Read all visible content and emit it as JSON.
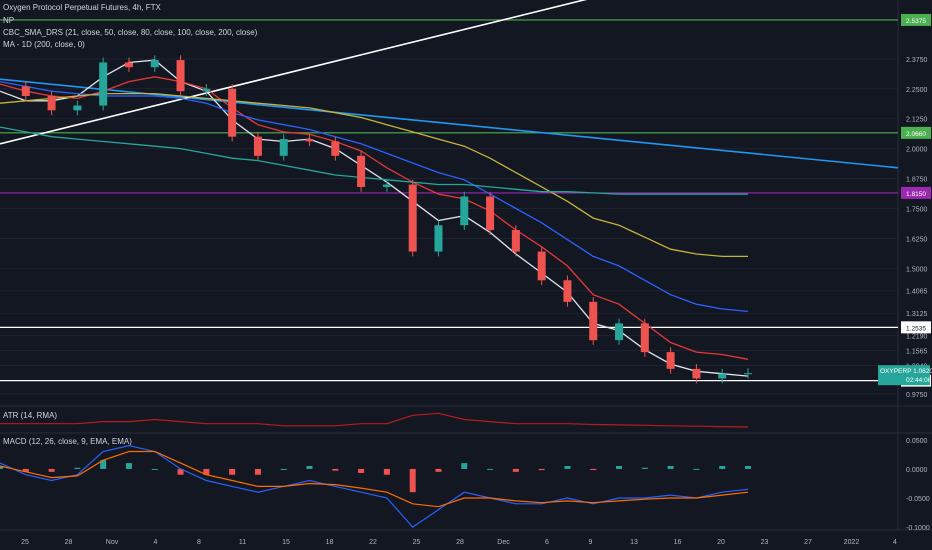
{
  "header": {
    "title": "Oxygen Protocol Perpetual Futures, 4h, FTX",
    "legend_np": "NP",
    "legend_sma": "CBC_SMA_DRS (21, close, 50, close, 80, close, 100, close, 200, close)",
    "legend_ma1d": "MA - 1D (200, close, 0)"
  },
  "atr": {
    "label": "ATR (14, RMA)"
  },
  "macd": {
    "label": "MACD (12, 26, close, 9, EMA, EMA)"
  },
  "chart_data": {
    "type": "line",
    "title": "Oxygen Protocol Perpetual Futures, 4h, FTX",
    "symbol_tag": "OXYPERP",
    "last_price": "1.0620",
    "countdown": "02:44:06",
    "price_axis_ticks": [
      "2.3750",
      "2.2500",
      "2.1250",
      "2.0000",
      "1.8750",
      "1.7500",
      "1.6250",
      "1.5000",
      "1.4065",
      "1.3125",
      "1.2190",
      "1.1565",
      "1.0940",
      "0.9750"
    ],
    "macd_axis_ticks": [
      "0.0500",
      "0.0000",
      "-0.0500",
      "-0.1000"
    ],
    "x_ticks": [
      "25",
      "28",
      "Nov",
      "4",
      "8",
      "11",
      "15",
      "18",
      "22",
      "25",
      "28",
      "Dec",
      "6",
      "9",
      "13",
      "16",
      "20",
      "23",
      "27",
      "2022",
      "4"
    ],
    "horizontal_levels": [
      {
        "label": "2.5375",
        "value": 2.5375,
        "color": "#4caf50"
      },
      {
        "label": "2.0660",
        "value": 2.066,
        "color": "#4caf50"
      },
      {
        "label": "1.8150",
        "value": 1.815,
        "color": "#9c27b0"
      },
      {
        "label": "1.2535",
        "value": 1.2535,
        "color": "#ffffff"
      },
      {
        "label": "1.0310",
        "value": 1.031,
        "color": "#ffffff"
      }
    ],
    "price_series": {
      "name": "OXYPERP",
      "x_dates": [
        "Oct 23",
        "Oct 25",
        "Oct 28",
        "Nov 1",
        "Nov 4",
        "Nov 6",
        "Nov 8",
        "Nov 11",
        "Nov 15",
        "Nov 18",
        "Nov 20",
        "Nov 22",
        "Nov 25",
        "Nov 27",
        "Nov 29",
        "Dec 1",
        "Dec 2",
        "Dec 3",
        "Dec 4",
        "Dec 6",
        "Dec 9",
        "Dec 11",
        "Dec 13",
        "Dec 15",
        "Dec 16",
        "Dec 18",
        "Dec 20",
        "Dec 21",
        "Dec 22",
        "Dec 23"
      ],
      "close": [
        2.26,
        2.22,
        2.16,
        2.18,
        2.36,
        2.34,
        2.37,
        2.24,
        2.25,
        2.05,
        1.97,
        2.04,
        2.03,
        1.97,
        1.84,
        1.85,
        1.57,
        1.68,
        1.8,
        1.66,
        1.57,
        1.45,
        1.36,
        1.2,
        1.27,
        1.15,
        1.08,
        1.04,
        1.06,
        1.062
      ]
    },
    "ma_lines": [
      {
        "name": "SMA 21",
        "color": "#e0e3eb",
        "values": [
          2.24,
          2.2,
          2.2,
          2.22,
          2.3,
          2.36,
          2.37,
          2.28,
          2.24,
          2.12,
          2.04,
          2.03,
          2.04,
          2.0,
          1.93,
          1.86,
          1.78,
          1.7,
          1.72,
          1.65,
          1.56,
          1.48,
          1.4,
          1.27,
          1.24,
          1.16,
          1.1,
          1.07,
          1.06,
          1.05
        ]
      },
      {
        "name": "SMA 50",
        "color": "#e53935",
        "values": [
          2.27,
          2.24,
          2.22,
          2.21,
          2.24,
          2.28,
          2.3,
          2.28,
          2.25,
          2.17,
          2.1,
          2.07,
          2.06,
          2.03,
          1.99,
          1.92,
          1.86,
          1.81,
          1.79,
          1.74,
          1.66,
          1.59,
          1.51,
          1.39,
          1.35,
          1.27,
          1.19,
          1.15,
          1.14,
          1.12
        ]
      },
      {
        "name": "SMA 100",
        "color": "#2962ff",
        "values": [
          2.28,
          2.26,
          2.24,
          2.23,
          2.22,
          2.22,
          2.22,
          2.21,
          2.19,
          2.15,
          2.12,
          2.1,
          2.08,
          2.05,
          2.02,
          1.98,
          1.94,
          1.9,
          1.87,
          1.81,
          1.75,
          1.69,
          1.62,
          1.55,
          1.51,
          1.45,
          1.39,
          1.35,
          1.33,
          1.32
        ]
      },
      {
        "name": "SMA 200",
        "color": "#c5b33a",
        "values": [
          2.19,
          2.2,
          2.21,
          2.22,
          2.23,
          2.23,
          2.23,
          2.22,
          2.21,
          2.2,
          2.19,
          2.18,
          2.17,
          2.15,
          2.13,
          2.1,
          2.07,
          2.04,
          2.01,
          1.96,
          1.9,
          1.84,
          1.78,
          1.71,
          1.68,
          1.63,
          1.58,
          1.56,
          1.55,
          1.55
        ]
      },
      {
        "name": "MA - 1D 200",
        "color": "#26a69a",
        "values": [
          2.09,
          2.07,
          2.05,
          2.04,
          2.03,
          2.02,
          2.01,
          2.0,
          1.98,
          1.96,
          1.95,
          1.93,
          1.91,
          1.89,
          1.88,
          1.87,
          1.86,
          1.85,
          1.85,
          1.84,
          1.83,
          1.82,
          1.82,
          1.815,
          1.81,
          1.81,
          1.81,
          1.81,
          1.81,
          1.81
        ]
      }
    ],
    "trendlines": [
      {
        "name": "long trendline",
        "color": "#2196f3",
        "from": [
          2.29,
          "Oct 23"
        ],
        "to": [
          1.92,
          "Jan 4"
        ]
      },
      {
        "name": "rising trendline",
        "color": "#ffffff",
        "from": [
          2.02,
          "Oct 23"
        ],
        "to": [
          2.79,
          "Dec 23"
        ]
      }
    ],
    "atr_values": [
      0.05,
      0.05,
      0.05,
      0.05,
      0.055,
      0.055,
      0.06,
      0.055,
      0.05,
      0.05,
      0.05,
      0.045,
      0.045,
      0.045,
      0.05,
      0.05,
      0.07,
      0.075,
      0.06,
      0.055,
      0.05,
      0.05,
      0.05,
      0.048,
      0.047,
      0.046,
      0.045,
      0.044,
      0.043,
      0.042
    ],
    "macd_line": [
      0.01,
      -0.01,
      -0.02,
      -0.01,
      0.03,
      0.04,
      0.03,
      0.0,
      -0.02,
      -0.03,
      -0.04,
      -0.03,
      -0.02,
      -0.03,
      -0.04,
      -0.05,
      -0.1,
      -0.07,
      -0.04,
      -0.05,
      -0.06,
      -0.06,
      -0.05,
      -0.06,
      -0.05,
      -0.05,
      -0.045,
      -0.05,
      -0.04,
      -0.035
    ],
    "signal_line": [
      0.005,
      -0.005,
      -0.015,
      -0.012,
      0.015,
      0.03,
      0.03,
      0.01,
      -0.01,
      -0.02,
      -0.03,
      -0.03,
      -0.025,
      -0.027,
      -0.033,
      -0.04,
      -0.06,
      -0.065,
      -0.05,
      -0.05,
      -0.055,
      -0.058,
      -0.055,
      -0.058,
      -0.055,
      -0.052,
      -0.05,
      -0.05,
      -0.045,
      -0.04
    ],
    "y_range": [
      0.95,
      2.6
    ],
    "macd_range": [
      -0.105,
      0.06
    ],
    "colors": {
      "up": "#26a69a",
      "down": "#ef5350",
      "background": "#131722",
      "grid": "#1f2333"
    }
  }
}
